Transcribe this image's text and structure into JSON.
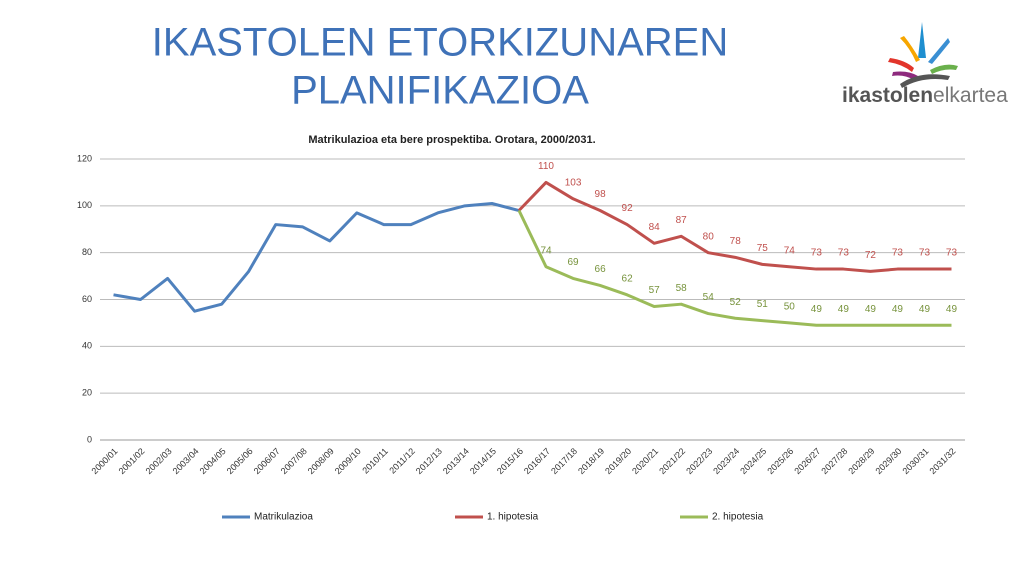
{
  "slide": {
    "title_lines": [
      "IKASTOLEN ETORKIZUNAREN",
      "PLANIFIKAZIOA"
    ],
    "logo_text": [
      "ikastolen",
      "elkartea"
    ]
  },
  "chart_data": {
    "type": "line",
    "title": "Matrikulazioa eta bere prospektiba. Orotara, 2000/2031.",
    "categories": [
      "2000/01",
      "2001/02",
      "2002/03",
      "2003/04",
      "2004/05",
      "2005/06",
      "2006/07",
      "2007/08",
      "2008/09",
      "2009/10",
      "2010/11",
      "2011/12",
      "2012/13",
      "2013/14",
      "2014/15",
      "2015/16",
      "2016/17",
      "2017/18",
      "2018/19",
      "2019/20",
      "2020/21",
      "2021/22",
      "2022/23",
      "2023/24",
      "2024/25",
      "2025/26",
      "2026/27",
      "2027/28",
      "2028/29",
      "2029/30",
      "2030/31",
      "2031/32"
    ],
    "series": [
      {
        "name": "Matrikulazioa",
        "color": "#4f81bd",
        "values": [
          62,
          60,
          69,
          55,
          58,
          72,
          92,
          91,
          85,
          97,
          92,
          92,
          97,
          100,
          101,
          98,
          null,
          null,
          null,
          null,
          null,
          null,
          null,
          null,
          null,
          null,
          null,
          null,
          null,
          null,
          null,
          null
        ]
      },
      {
        "name": "1. hipotesia",
        "color": "#c0504d",
        "label_color": "#c0504d",
        "values": [
          null,
          null,
          null,
          null,
          null,
          null,
          null,
          null,
          null,
          null,
          null,
          null,
          null,
          null,
          null,
          98,
          110,
          103,
          98,
          92,
          84,
          87,
          80,
          78,
          75,
          74,
          73,
          73,
          72,
          73,
          73,
          73
        ]
      },
      {
        "name": "2. hipotesia",
        "color": "#9bbb59",
        "label_color": "#77933c",
        "values": [
          null,
          null,
          null,
          null,
          null,
          null,
          null,
          null,
          null,
          null,
          null,
          null,
          null,
          null,
          null,
          98,
          74,
          69,
          66,
          62,
          57,
          58,
          54,
          52,
          51,
          50,
          49,
          49,
          49,
          49,
          49,
          49
        ]
      }
    ],
    "ylim": [
      0,
      120
    ],
    "yticks": [
      0,
      20,
      40,
      60,
      80,
      100,
      120
    ],
    "grid": true,
    "legend": "bottom"
  }
}
